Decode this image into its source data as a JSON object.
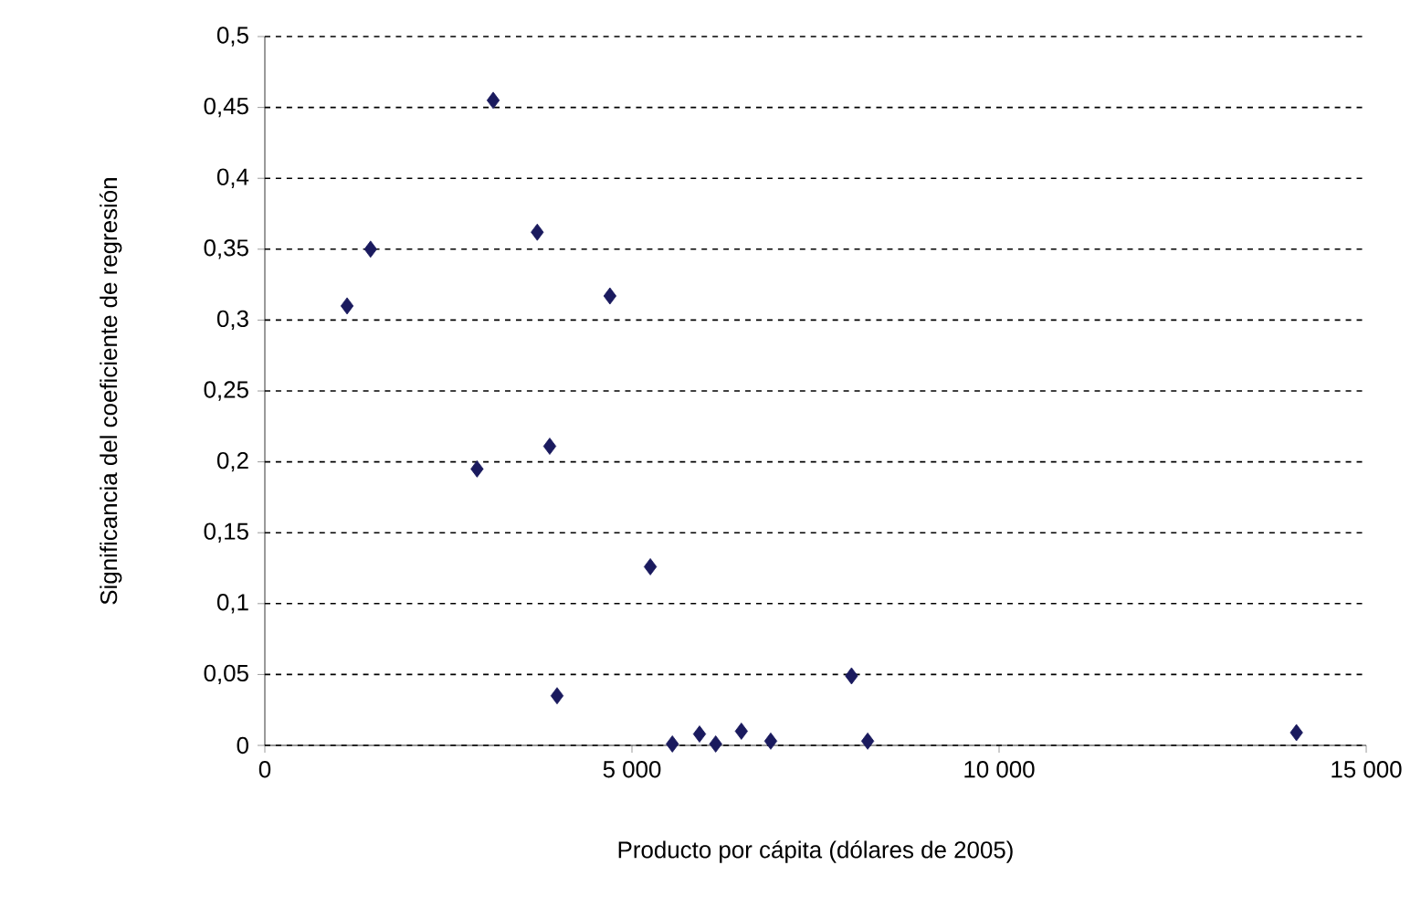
{
  "chart_data": {
    "type": "scatter",
    "xlabel": "Producto por cápita (dólares de 2005)",
    "ylabel": "Significancia del coeficiente de regresión",
    "x": [
      1120,
      1440,
      2890,
      3110,
      3710,
      3880,
      4700,
      3980,
      5250,
      5550,
      5920,
      6140,
      6490,
      6890,
      7990,
      8210,
      14050
    ],
    "series": [
      {
        "color": "#1a1a5e",
        "values": [
          0.31,
          0.35,
          0.195,
          0.455,
          0.362,
          0.211,
          0.317,
          0.035,
          0.126,
          0.001,
          0.008,
          0.001,
          0.01,
          0.003,
          0.049,
          0.003,
          0.009
        ]
      }
    ],
    "xlim": [
      0,
      15000
    ],
    "ylim": [
      0,
      0.5
    ],
    "xticks": [
      0,
      {
        "value": 5000,
        "label": "5 000"
      },
      {
        "value": 10000,
        "label": "10 000"
      },
      {
        "value": 15000,
        "label": "15 000"
      }
    ],
    "yticks": [
      0,
      {
        "value": 0.05,
        "label": "0,05"
      },
      {
        "value": 0.1,
        "label": "0,1"
      },
      {
        "value": 0.15,
        "label": "0,15"
      },
      {
        "value": 0.2,
        "label": "0,2"
      },
      {
        "value": 0.25,
        "label": "0,25"
      },
      {
        "value": 0.3,
        "label": "0,3"
      },
      {
        "value": 0.35,
        "label": "0,35"
      },
      {
        "value": 0.4,
        "label": "0,4"
      },
      {
        "value": 0.45,
        "label": "0,45"
      },
      {
        "value": 0.5,
        "label": "0,5"
      }
    ],
    "grid": "y",
    "marker": "diamond"
  }
}
